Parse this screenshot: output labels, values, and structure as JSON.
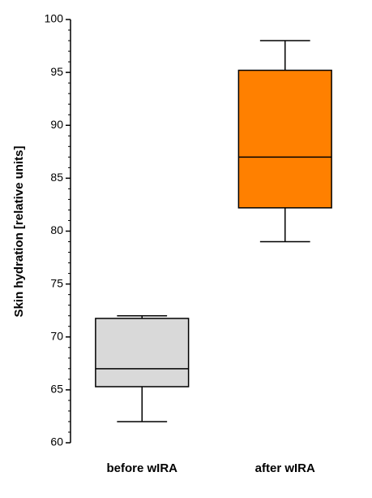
{
  "chart_data": {
    "type": "box",
    "y_label": "Skin hydration [relative units]",
    "categories": [
      "before wIRA",
      "after wIRA"
    ],
    "boxes": [
      {
        "whislo": 62,
        "q1": 65.3,
        "med": 67,
        "q3": 71.75,
        "whishi": 72
      },
      {
        "whislo": 79,
        "q1": 82.2,
        "med": 87,
        "q3": 95.2,
        "whishi": 98
      }
    ],
    "colors": [
      "#d9d9d9",
      "#ff8000"
    ],
    "ylim": [
      60,
      100
    ],
    "yticks": [
      60,
      65,
      70,
      75,
      80,
      85,
      90,
      95,
      100
    ],
    "minor_yticks": [
      61,
      62,
      63,
      64,
      66,
      67,
      68,
      69,
      71,
      72,
      73,
      74,
      76,
      77,
      78,
      79,
      81,
      82,
      83,
      84,
      86,
      87,
      88,
      89,
      91,
      92,
      93,
      94,
      96,
      97,
      98,
      99
    ]
  }
}
